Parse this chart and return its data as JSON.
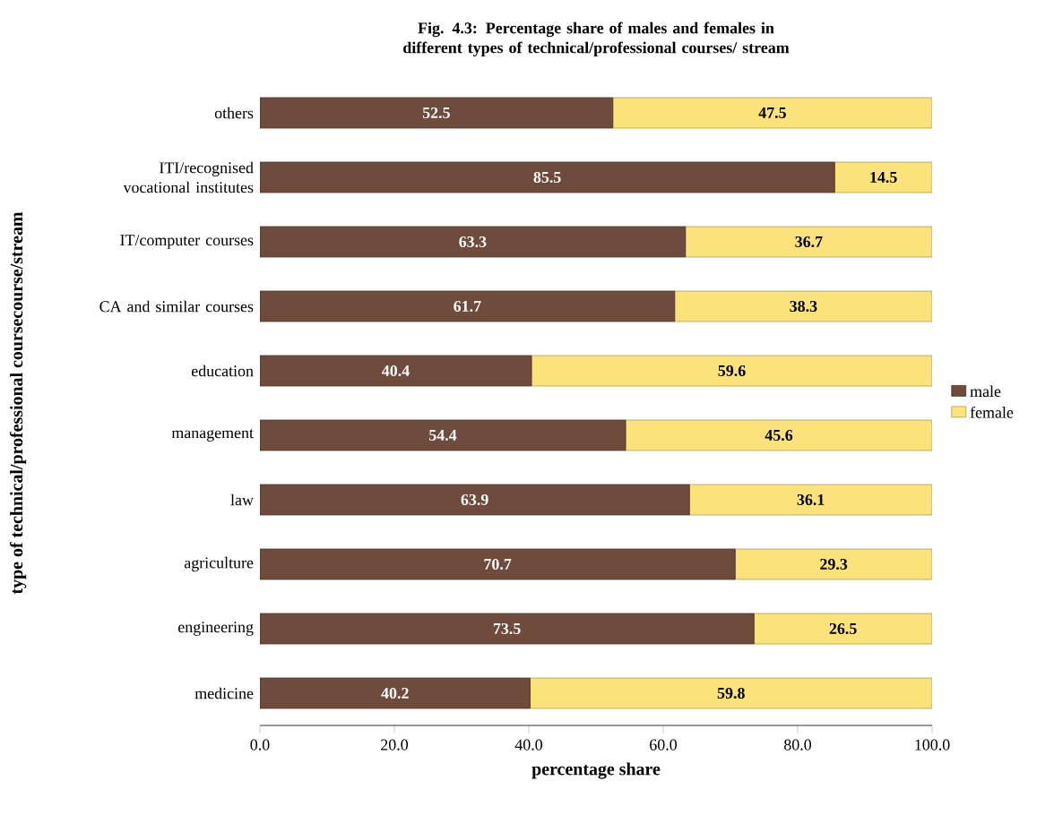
{
  "chart_data": {
    "type": "bar",
    "orientation": "horizontal",
    "stacked": true,
    "title": "Fig. 4.3: Percentage share of males and females in different types of technical/professional courses/ stream",
    "xlabel": "percentage share",
    "ylabel": "type of technical/professional coursecourse/stream",
    "categories": [
      "others",
      "ITI/recognised vocational institutes",
      "IT/computer courses",
      "CA and similar courses",
      "education",
      "management",
      "law",
      "agriculture",
      "engineering",
      "medicine"
    ],
    "series": [
      {
        "name": "male",
        "color": "#6e4b3c",
        "values": [
          52.5,
          85.5,
          63.3,
          61.7,
          40.4,
          54.4,
          63.9,
          70.7,
          73.5,
          40.2
        ]
      },
      {
        "name": "female",
        "color": "#fbe27a",
        "values": [
          47.5,
          14.5,
          36.7,
          38.3,
          59.6,
          45.6,
          36.1,
          29.3,
          26.5,
          59.8
        ]
      }
    ],
    "xlim": [
      0,
      100
    ],
    "xticks": [
      {
        "value": 0,
        "label": "0.0"
      },
      {
        "value": 20,
        "label": "20.0"
      },
      {
        "value": 40,
        "label": "40.0"
      },
      {
        "value": 60,
        "label": "60.0"
      },
      {
        "value": 80,
        "label": "80.0"
      },
      {
        "value": 100,
        "label": "100.0"
      }
    ],
    "data_labels": true,
    "legend": "right",
    "grid": false
  }
}
